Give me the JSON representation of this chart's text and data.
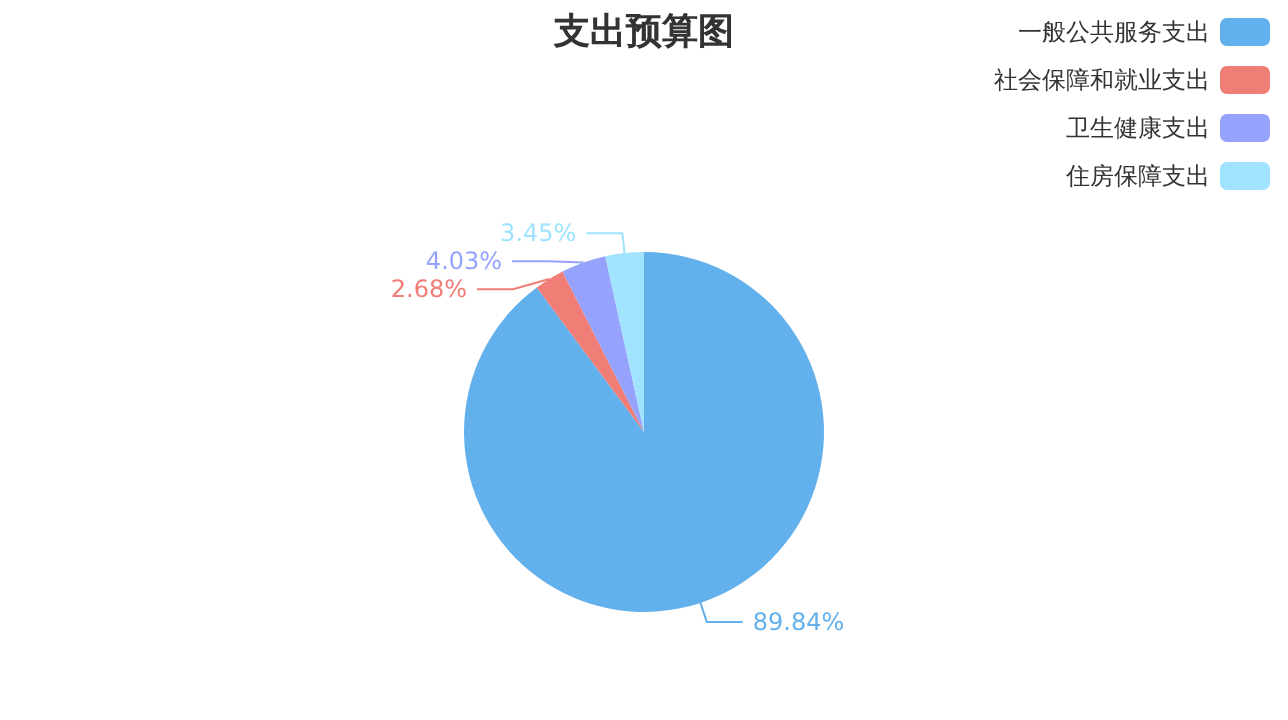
{
  "chart_data": {
    "type": "pie",
    "title": "支出预算图",
    "categories": [
      "一般公共服务支出",
      "社会保障和就业支出",
      "卫生健康支出",
      "住房保障支出"
    ],
    "values": [
      89.84,
      2.68,
      4.03,
      3.45
    ],
    "colors": [
      "#62b0ec",
      "#f07d76",
      "#96a3fd",
      "#a0e3ff"
    ],
    "value_labels": [
      "89.84%",
      "2.68%",
      "4.03%",
      "3.45%"
    ],
    "legend": "top right"
  }
}
